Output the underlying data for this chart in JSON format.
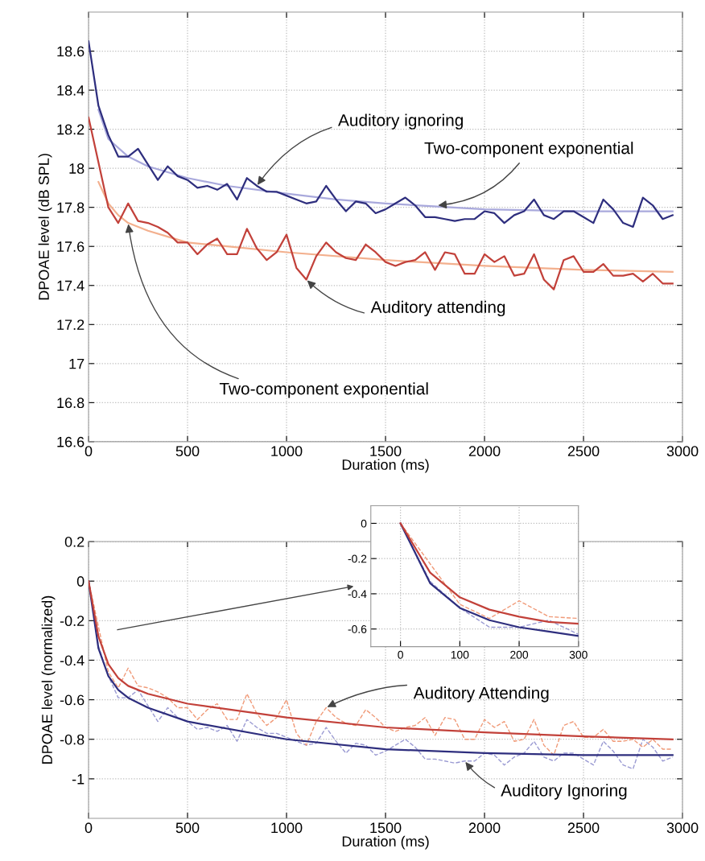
{
  "chart_data": [
    {
      "type": "line",
      "xlabel": "Duration (ms)",
      "ylabel": "DPOAE level (dB SPL)",
      "xlim": [
        0,
        3000
      ],
      "xticks": [
        0,
        500,
        1000,
        1500,
        2000,
        2500,
        3000
      ],
      "ylim": [
        16.6,
        18.8
      ],
      "yticks": [
        16.6,
        16.8,
        17,
        17.2,
        17.4,
        17.6,
        17.8,
        18,
        18.2,
        18.4,
        18.6
      ],
      "grid": true,
      "series": [
        {
          "color": "#a9a9dc",
          "line_style": "solid",
          "x": [
            50,
            100,
            200,
            300,
            400,
            500,
            700,
            1000,
            1250,
            1500,
            2000,
            2500,
            2950
          ],
          "values": [
            18.3,
            18.15,
            18.06,
            18.01,
            17.98,
            17.95,
            17.91,
            17.87,
            17.84,
            17.82,
            17.79,
            17.78,
            17.78
          ]
        },
        {
          "color": "#f3b08e",
          "line_style": "solid",
          "x": [
            50,
            100,
            150,
            200,
            300,
            400,
            500,
            700,
            1000,
            1500,
            2000,
            2500,
            2950
          ],
          "values": [
            17.93,
            17.82,
            17.76,
            17.72,
            17.68,
            17.65,
            17.62,
            17.6,
            17.57,
            17.53,
            17.5,
            17.48,
            17.47
          ]
        },
        {
          "color": "#2e2e7e",
          "line_style": "solid",
          "x": [
            0,
            50,
            100,
            150,
            200,
            250,
            300,
            350,
            400,
            450,
            500,
            550,
            600,
            650,
            700,
            750,
            800,
            850,
            900,
            950,
            1000,
            1050,
            1100,
            1150,
            1200,
            1250,
            1300,
            1350,
            1400,
            1450,
            1500,
            1550,
            1600,
            1650,
            1700,
            1750,
            1800,
            1850,
            1900,
            1950,
            2000,
            2050,
            2100,
            2150,
            2200,
            2250,
            2300,
            2350,
            2400,
            2450,
            2500,
            2550,
            2600,
            2650,
            2700,
            2750,
            2800,
            2850,
            2900,
            2950
          ],
          "values": [
            18.65,
            18.32,
            18.17,
            18.06,
            18.06,
            18.1,
            18.02,
            17.94,
            18.01,
            17.96,
            17.94,
            17.9,
            17.91,
            17.89,
            17.92,
            17.84,
            17.95,
            17.91,
            17.88,
            17.88,
            17.86,
            17.84,
            17.82,
            17.83,
            17.91,
            17.84,
            17.78,
            17.83,
            17.82,
            17.77,
            17.79,
            17.82,
            17.85,
            17.81,
            17.75,
            17.75,
            17.74,
            17.73,
            17.74,
            17.74,
            17.78,
            17.77,
            17.72,
            17.76,
            17.78,
            17.84,
            17.76,
            17.74,
            17.78,
            17.78,
            17.75,
            17.72,
            17.84,
            17.79,
            17.72,
            17.7,
            17.85,
            17.81,
            17.74,
            17.76
          ]
        },
        {
          "color": "#c2413a",
          "line_style": "solid",
          "x": [
            0,
            50,
            100,
            150,
            200,
            250,
            300,
            350,
            400,
            450,
            500,
            550,
            600,
            650,
            700,
            750,
            800,
            850,
            900,
            950,
            1000,
            1050,
            1100,
            1150,
            1200,
            1250,
            1300,
            1350,
            1400,
            1450,
            1500,
            1550,
            1600,
            1650,
            1700,
            1750,
            1800,
            1850,
            1900,
            1950,
            2000,
            2050,
            2100,
            2150,
            2200,
            2250,
            2300,
            2350,
            2400,
            2450,
            2500,
            2550,
            2600,
            2650,
            2700,
            2750,
            2800,
            2850,
            2900,
            2950
          ],
          "values": [
            18.26,
            18.03,
            17.8,
            17.72,
            17.82,
            17.73,
            17.72,
            17.7,
            17.67,
            17.62,
            17.62,
            17.56,
            17.61,
            17.64,
            17.56,
            17.56,
            17.69,
            17.59,
            17.53,
            17.57,
            17.66,
            17.49,
            17.43,
            17.55,
            17.62,
            17.57,
            17.54,
            17.53,
            17.61,
            17.57,
            17.52,
            17.5,
            17.52,
            17.53,
            17.57,
            17.48,
            17.57,
            17.56,
            17.46,
            17.46,
            17.56,
            17.52,
            17.55,
            17.45,
            17.46,
            17.56,
            17.43,
            17.38,
            17.53,
            17.55,
            17.47,
            17.47,
            17.51,
            17.45,
            17.45,
            17.46,
            17.42,
            17.46,
            17.41,
            17.41
          ]
        }
      ],
      "annotations": [
        {
          "text": "Auditory ignoring",
          "x": 850,
          "y": 17.91
        },
        {
          "text": "Two-component exponential",
          "x": 1760,
          "y": 17.81
        },
        {
          "text": "Auditory attending",
          "x": 1100,
          "y": 17.43
        },
        {
          "text": "Two-component exponential",
          "x": 200,
          "y": 17.72
        }
      ]
    },
    {
      "type": "line",
      "xlabel": "Duration (ms)",
      "ylabel": "DPOAE level (normalized)",
      "xlim": [
        0,
        3000
      ],
      "xticks": [
        0,
        500,
        1000,
        1500,
        2000,
        2500,
        3000
      ],
      "ylim": [
        -1.2,
        0.2
      ],
      "yticks": [
        -1,
        -0.8,
        -0.6,
        -0.4,
        -0.2,
        0,
        0.2
      ],
      "grid": true,
      "series": [
        {
          "color": "#9a9ad2",
          "line_style": "dashed",
          "x": [
            0,
            50,
            100,
            150,
            200,
            250,
            300,
            350,
            400,
            450,
            500,
            550,
            600,
            650,
            700,
            750,
            800,
            850,
            900,
            950,
            1000,
            1050,
            1100,
            1150,
            1200,
            1250,
            1300,
            1350,
            1400,
            1450,
            1500,
            1550,
            1600,
            1650,
            1700,
            1750,
            1800,
            1850,
            1900,
            1950,
            2000,
            2050,
            2100,
            2150,
            2200,
            2250,
            2300,
            2350,
            2400,
            2450,
            2500,
            2550,
            2600,
            2650,
            2700,
            2750,
            2800,
            2850,
            2900,
            2950
          ],
          "values": [
            0,
            -0.33,
            -0.48,
            -0.59,
            -0.59,
            -0.55,
            -0.63,
            -0.71,
            -0.64,
            -0.69,
            -0.71,
            -0.75,
            -0.74,
            -0.76,
            -0.73,
            -0.81,
            -0.7,
            -0.74,
            -0.77,
            -0.77,
            -0.79,
            -0.81,
            -0.83,
            -0.82,
            -0.74,
            -0.81,
            -0.87,
            -0.82,
            -0.83,
            -0.88,
            -0.86,
            -0.83,
            -0.8,
            -0.84,
            -0.9,
            -0.9,
            -0.91,
            -0.92,
            -0.91,
            -0.91,
            -0.87,
            -0.88,
            -0.93,
            -0.89,
            -0.87,
            -0.81,
            -0.89,
            -0.91,
            -0.87,
            -0.87,
            -0.9,
            -0.93,
            -0.81,
            -0.86,
            -0.93,
            -0.95,
            -0.8,
            -0.84,
            -0.91,
            -0.89
          ]
        },
        {
          "color": "#f09a78",
          "line_style": "dashed",
          "x": [
            0,
            50,
            100,
            150,
            200,
            250,
            300,
            350,
            400,
            450,
            500,
            550,
            600,
            650,
            700,
            750,
            800,
            850,
            900,
            950,
            1000,
            1050,
            1100,
            1150,
            1200,
            1250,
            1300,
            1350,
            1400,
            1450,
            1500,
            1550,
            1600,
            1650,
            1700,
            1750,
            1800,
            1850,
            1900,
            1950,
            2000,
            2050,
            2100,
            2150,
            2200,
            2250,
            2300,
            2350,
            2400,
            2450,
            2500,
            2550,
            2600,
            2650,
            2700,
            2750,
            2800,
            2850,
            2900,
            2950
          ],
          "values": [
            0,
            -0.23,
            -0.46,
            -0.54,
            -0.44,
            -0.53,
            -0.54,
            -0.56,
            -0.59,
            -0.64,
            -0.64,
            -0.7,
            -0.65,
            -0.62,
            -0.7,
            -0.7,
            -0.57,
            -0.67,
            -0.73,
            -0.69,
            -0.6,
            -0.77,
            -0.83,
            -0.71,
            -0.64,
            -0.69,
            -0.72,
            -0.73,
            -0.65,
            -0.69,
            -0.74,
            -0.76,
            -0.74,
            -0.73,
            -0.69,
            -0.78,
            -0.69,
            -0.7,
            -0.8,
            -0.8,
            -0.7,
            -0.74,
            -0.71,
            -0.81,
            -0.8,
            -0.7,
            -0.83,
            -0.88,
            -0.73,
            -0.71,
            -0.79,
            -0.79,
            -0.75,
            -0.81,
            -0.81,
            -0.8,
            -0.84,
            -0.8,
            -0.85,
            -0.85
          ]
        },
        {
          "color": "#2e2e7e",
          "line_style": "solid",
          "x": [
            0,
            50,
            100,
            150,
            200,
            300,
            500,
            1000,
            1500,
            2000,
            2500,
            2950
          ],
          "values": [
            0,
            -0.34,
            -0.48,
            -0.55,
            -0.59,
            -0.64,
            -0.71,
            -0.8,
            -0.85,
            -0.87,
            -0.88,
            -0.88
          ]
        },
        {
          "color": "#c2413a",
          "line_style": "solid",
          "x": [
            0,
            50,
            100,
            150,
            200,
            300,
            500,
            1000,
            1500,
            2000,
            2500,
            2950
          ],
          "values": [
            0,
            -0.28,
            -0.42,
            -0.49,
            -0.53,
            -0.57,
            -0.62,
            -0.69,
            -0.74,
            -0.765,
            -0.785,
            -0.8
          ]
        }
      ],
      "annotations": [
        {
          "text": "Auditory Attending",
          "x": 1200,
          "y": -0.64
        },
        {
          "text": "Auditory Ignoring",
          "x": 1900,
          "y": -0.91
        }
      ]
    },
    {
      "type": "line",
      "xlim": [
        -50,
        300
      ],
      "xticks": [
        0,
        100,
        200,
        300
      ],
      "ylim": [
        -0.7,
        0.1
      ],
      "yticks": [
        -0.6,
        -0.4,
        -0.2,
        0
      ],
      "grid": true,
      "series": [
        {
          "color": "#9a9ad2",
          "line_style": "dashed",
          "x": [
            0,
            50,
            100,
            150,
            200,
            250,
            300
          ],
          "values": [
            0,
            -0.33,
            -0.48,
            -0.59,
            -0.59,
            -0.55,
            -0.63
          ]
        },
        {
          "color": "#f09a78",
          "line_style": "dashed",
          "x": [
            0,
            50,
            100,
            150,
            200,
            250,
            300
          ],
          "values": [
            0,
            -0.23,
            -0.46,
            -0.54,
            -0.44,
            -0.53,
            -0.54
          ]
        },
        {
          "color": "#2e2e7e",
          "line_style": "solid",
          "x": [
            0,
            50,
            100,
            150,
            200,
            250,
            300
          ],
          "values": [
            0,
            -0.34,
            -0.48,
            -0.55,
            -0.59,
            -0.615,
            -0.64
          ]
        },
        {
          "color": "#c2413a",
          "line_style": "solid",
          "x": [
            0,
            50,
            100,
            150,
            200,
            250,
            300
          ],
          "values": [
            0,
            -0.28,
            -0.42,
            -0.49,
            -0.53,
            -0.56,
            -0.57
          ]
        }
      ]
    }
  ]
}
